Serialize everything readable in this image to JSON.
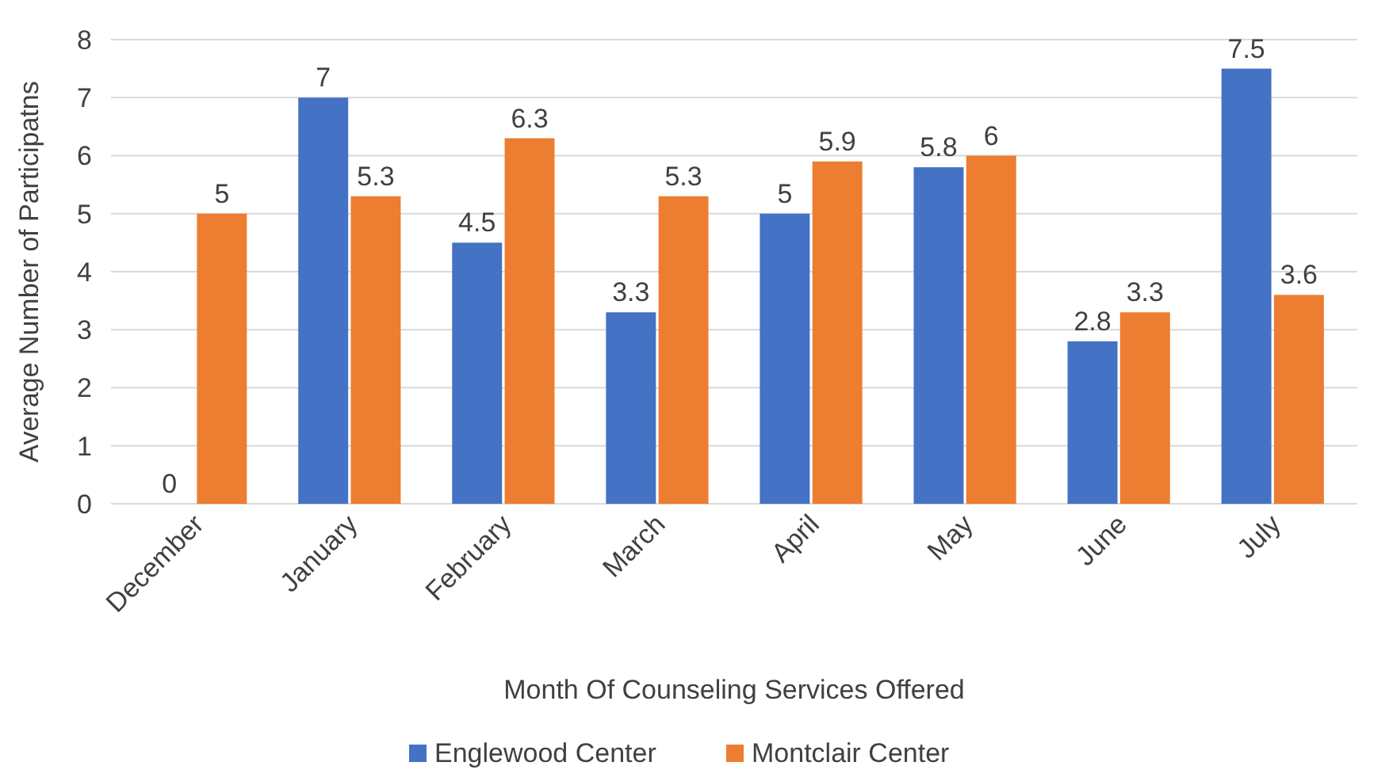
{
  "chart_data": {
    "type": "bar",
    "xlabel": "Month Of Counseling Services Offered",
    "ylabel": "Average Number of Participatns",
    "categories": [
      "December",
      "January",
      "February",
      "March",
      "April",
      "May",
      "June",
      "July"
    ],
    "series": [
      {
        "name": "Englewood Center",
        "color": "#4472c4",
        "values": [
          0,
          7,
          4.5,
          3.3,
          5,
          5.8,
          2.8,
          7.5
        ]
      },
      {
        "name": "Montclair Center",
        "color": "#ed7d31",
        "values": [
          5,
          5.3,
          6.3,
          5.3,
          5.9,
          6,
          3.3,
          3.6
        ]
      }
    ],
    "ylim": [
      0,
      8
    ],
    "yticks": [
      0,
      1,
      2,
      3,
      4,
      5,
      6,
      7,
      8
    ],
    "grid": "y",
    "legend": "bottom",
    "data_labels": true
  }
}
